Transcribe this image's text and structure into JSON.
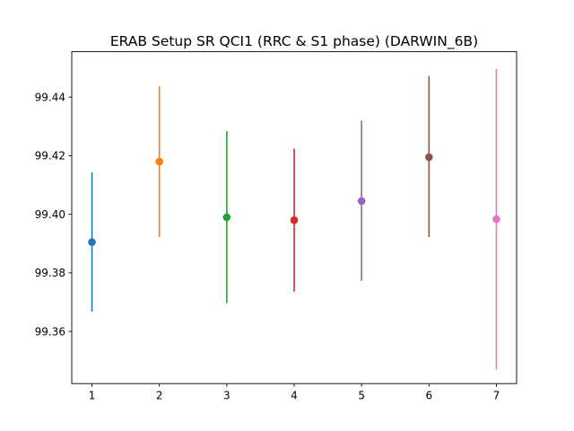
{
  "chart_data": {
    "type": "scatter",
    "title": "ERAB Setup SR QCI1 (RRC & S1 phase) (DARWIN_6B)",
    "xlabel": "",
    "ylabel": "",
    "xlim": [
      0.7,
      7.3
    ],
    "ylim": [
      99.3422,
      99.4555
    ],
    "x_ticks": [
      1,
      2,
      3,
      4,
      5,
      6,
      7
    ],
    "y_ticks": [
      99.36,
      99.38,
      99.4,
      99.42,
      99.44
    ],
    "y_tick_labels": [
      "99.36",
      "99.38",
      "99.40",
      "99.42",
      "99.44"
    ],
    "grid": false,
    "error_bars": true,
    "points": [
      {
        "x": 1,
        "y": 99.3905,
        "low": 99.3668,
        "high": 99.4143,
        "color": "#1f77b4"
      },
      {
        "x": 2,
        "y": 99.418,
        "low": 99.3922,
        "high": 99.4437,
        "color": "#ff7f0e"
      },
      {
        "x": 3,
        "y": 99.399,
        "low": 99.3697,
        "high": 99.4284,
        "color": "#2ca02c"
      },
      {
        "x": 4,
        "y": 99.398,
        "low": 99.3736,
        "high": 99.4224,
        "color": "#d62728"
      },
      {
        "x": 5,
        "y": 99.4045,
        "low": 99.3773,
        "high": 99.432,
        "color": "#9467bd"
      },
      {
        "x": 6,
        "y": 99.4195,
        "low": 99.3922,
        "high": 99.4472,
        "color": "#8c564b"
      },
      {
        "x": 7,
        "y": 99.3983,
        "low": 99.347,
        "high": 99.4496,
        "color": "#e377c2"
      }
    ]
  }
}
